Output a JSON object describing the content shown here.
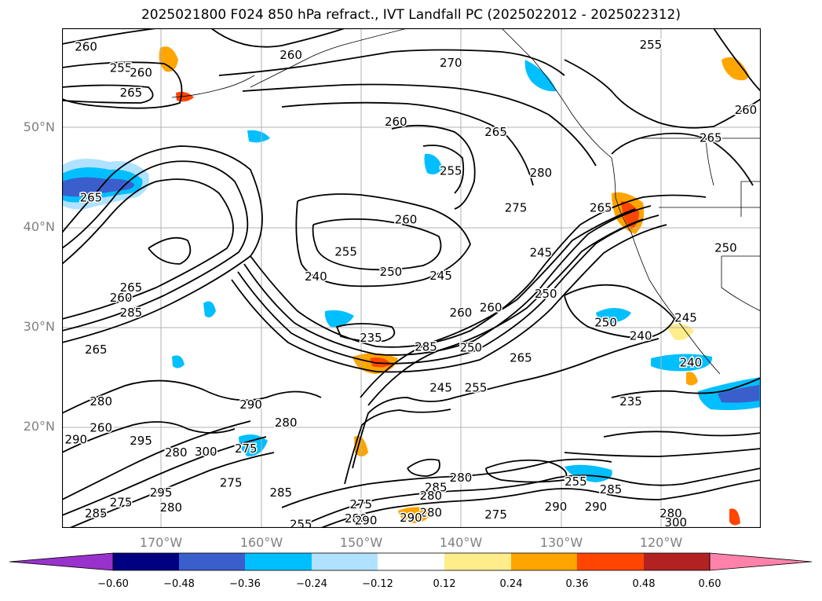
{
  "title": "2025021800 F024 850 hPa refract., IVT Landfall PC (2025022012 - 2025022312)",
  "lat_labels": [
    "50°N",
    "40°N",
    "30°N",
    "20°N"
  ],
  "lon_labels": [
    "170°W",
    "160°W",
    "150°W",
    "140°W",
    "130°W",
    "120°W"
  ],
  "colorbar": {
    "ticks": [
      "−0.60",
      "−0.48",
      "−0.36",
      "−0.24",
      "−0.12",
      "0.12",
      "0.24",
      "0.36",
      "0.48",
      "0.60"
    ],
    "colors": [
      "#9932cc",
      "#000080",
      "#3a5fcd",
      "#00bfff",
      "#b0e2ff",
      "#ffffff",
      "#ffec8b",
      "#ffa500",
      "#ff4500",
      "#b22222",
      "#ff82ab"
    ]
  },
  "contour_labels": [
    {
      "text": "260",
      "lon": -177.5,
      "lat": 58.1
    },
    {
      "text": "255",
      "lon": -174.0,
      "lat": 56.0
    },
    {
      "text": "260",
      "lon": -172.0,
      "lat": 55.5
    },
    {
      "text": "265",
      "lon": -173.0,
      "lat": 53.5
    },
    {
      "text": "260",
      "lon": -157.0,
      "lat": 57.3
    },
    {
      "text": "270",
      "lon": -141.0,
      "lat": 56.5
    },
    {
      "text": "255",
      "lon": -121.0,
      "lat": 58.3
    },
    {
      "text": "260",
      "lon": -146.5,
      "lat": 50.6
    },
    {
      "text": "265",
      "lon": -136.5,
      "lat": 49.6
    },
    {
      "text": "260",
      "lon": -111.5,
      "lat": 51.8
    },
    {
      "text": "265",
      "lon": -115.0,
      "lat": 49.0
    },
    {
      "text": "255",
      "lon": -141.0,
      "lat": 45.7
    },
    {
      "text": "280",
      "lon": -132.0,
      "lat": 45.5
    },
    {
      "text": "265",
      "lon": -177.0,
      "lat": 43.0
    },
    {
      "text": "275",
      "lon": -134.5,
      "lat": 42.0
    },
    {
      "text": "265",
      "lon": -126.0,
      "lat": 42.0
    },
    {
      "text": "260",
      "lon": -145.5,
      "lat": 40.8
    },
    {
      "text": "255",
      "lon": -151.5,
      "lat": 37.6
    },
    {
      "text": "245",
      "lon": -132.0,
      "lat": 37.5
    },
    {
      "text": "250",
      "lon": -113.5,
      "lat": 38.0
    },
    {
      "text": "250",
      "lon": -147.0,
      "lat": 35.6
    },
    {
      "text": "245",
      "lon": -142.0,
      "lat": 35.2
    },
    {
      "text": "240",
      "lon": -154.5,
      "lat": 35.1
    },
    {
      "text": "260",
      "lon": -174.0,
      "lat": 33.0
    },
    {
      "text": "265",
      "lon": -173.0,
      "lat": 34.0
    },
    {
      "text": "250",
      "lon": -131.5,
      "lat": 33.4
    },
    {
      "text": "285",
      "lon": -173.0,
      "lat": 31.5
    },
    {
      "text": "260",
      "lon": -137.0,
      "lat": 32.0
    },
    {
      "text": "260",
      "lon": -140.0,
      "lat": 31.5
    },
    {
      "text": "250",
      "lon": -125.5,
      "lat": 30.5
    },
    {
      "text": "245",
      "lon": -117.5,
      "lat": 31.0
    },
    {
      "text": "235",
      "lon": -149.0,
      "lat": 29.0
    },
    {
      "text": "240",
      "lon": -122.0,
      "lat": 29.2
    },
    {
      "text": "285",
      "lon": -143.5,
      "lat": 28.1
    },
    {
      "text": "250",
      "lon": -139.0,
      "lat": 28.0
    },
    {
      "text": "265",
      "lon": -176.5,
      "lat": 27.8
    },
    {
      "text": "265",
      "lon": -134.0,
      "lat": 27.0
    },
    {
      "text": "240",
      "lon": -117.0,
      "lat": 26.5
    },
    {
      "text": "245",
      "lon": -142.0,
      "lat": 24.0
    },
    {
      "text": "255",
      "lon": -138.5,
      "lat": 24.0
    },
    {
      "text": "280",
      "lon": -176.0,
      "lat": 22.6
    },
    {
      "text": "290",
      "lon": -161.0,
      "lat": 22.3
    },
    {
      "text": "235",
      "lon": -123.0,
      "lat": 22.6
    },
    {
      "text": "260",
      "lon": -176.0,
      "lat": 20.0
    },
    {
      "text": "280",
      "lon": -157.5,
      "lat": 20.5
    },
    {
      "text": "290",
      "lon": -178.5,
      "lat": 18.8
    },
    {
      "text": "295",
      "lon": -172.0,
      "lat": 18.7
    },
    {
      "text": "280",
      "lon": -168.5,
      "lat": 17.5
    },
    {
      "text": "300",
      "lon": -165.5,
      "lat": 17.6
    },
    {
      "text": "275",
      "lon": -161.5,
      "lat": 17.9
    },
    {
      "text": "280",
      "lon": -140.0,
      "lat": 15.0
    },
    {
      "text": "285",
      "lon": -142.5,
      "lat": 14.0
    },
    {
      "text": "280",
      "lon": -143.0,
      "lat": 13.2
    },
    {
      "text": "295",
      "lon": -170.0,
      "lat": 13.5
    },
    {
      "text": "275",
      "lon": -163.0,
      "lat": 14.5
    },
    {
      "text": "285",
      "lon": -158.0,
      "lat": 13.5
    },
    {
      "text": "275",
      "lon": -174.0,
      "lat": 12.5
    },
    {
      "text": "280",
      "lon": -169.0,
      "lat": 12.0
    },
    {
      "text": "285",
      "lon": -176.5,
      "lat": 11.4
    },
    {
      "text": "255",
      "lon": -128.5,
      "lat": 14.6
    },
    {
      "text": "285",
      "lon": -125.0,
      "lat": 13.8
    },
    {
      "text": "290",
      "lon": -130.5,
      "lat": 12.1
    },
    {
      "text": "290",
      "lon": -126.5,
      "lat": 12.1
    },
    {
      "text": "275",
      "lon": -136.5,
      "lat": 11.3
    },
    {
      "text": "280",
      "lon": -143.0,
      "lat": 11.5
    },
    {
      "text": "280",
      "lon": -119.0,
      "lat": 11.4
    },
    {
      "text": "300",
      "lon": -118.5,
      "lat": 10.5
    },
    {
      "text": "275",
      "lon": -150.0,
      "lat": 12.3
    },
    {
      "text": "255",
      "lon": -156.0,
      "lat": 10.3
    },
    {
      "text": "280",
      "lon": -150.5,
      "lat": 10.9
    },
    {
      "text": "290",
      "lon": -149.5,
      "lat": 10.7
    },
    {
      "text": "290",
      "lon": -145.0,
      "lat": 11.0
    }
  ]
}
